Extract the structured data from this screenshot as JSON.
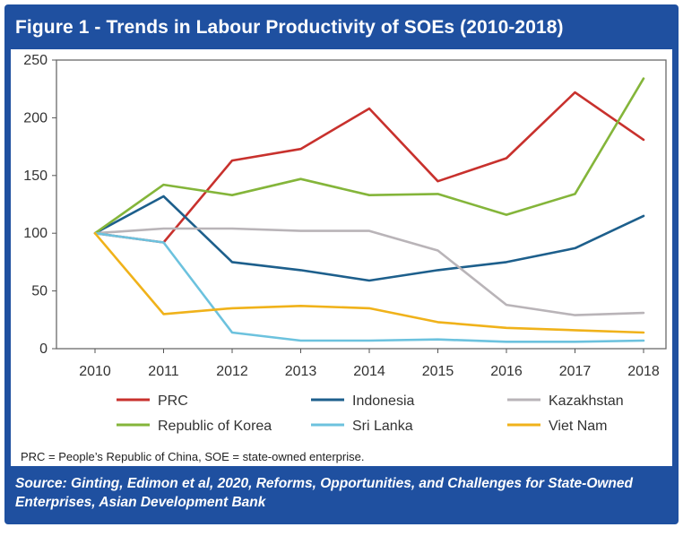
{
  "figure": {
    "title": "Figure 1 - Trends in Labour Productivity of SOEs (2010-2018)",
    "note": "PRC = People’s Republic of China, SOE = state-owned enterprise.",
    "source": "Source: Ginting, Edimon et al, 2020, Reforms, Opportunities, and Challenges for State-Owned Enterprises, Asian Development Bank"
  },
  "colors": {
    "frame": "#1f50a0",
    "PRC": "#c8312d",
    "Indonesia": "#1d5f8c",
    "Kazakhstan": "#b9b4b8",
    "Republic of Korea": "#84b53a",
    "Sri Lanka": "#6cc2de",
    "Viet Nam": "#f0b21a"
  },
  "chart_data": {
    "type": "line",
    "x": [
      "2010",
      "2011",
      "2012",
      "2013",
      "2014",
      "2015",
      "2016",
      "2017",
      "2018"
    ],
    "ylim": [
      0,
      250
    ],
    "yticks": [
      0,
      50,
      100,
      150,
      200,
      250
    ],
    "grid": false,
    "legend_position": "bottom",
    "series": [
      {
        "name": "PRC",
        "values": [
          100,
          92,
          163,
          173,
          208,
          145,
          165,
          222,
          181
        ]
      },
      {
        "name": "Indonesia",
        "values": [
          100,
          132,
          75,
          68,
          59,
          68,
          75,
          87,
          115
        ]
      },
      {
        "name": "Kazakhstan",
        "values": [
          100,
          104,
          104,
          102,
          102,
          85,
          38,
          29,
          31
        ]
      },
      {
        "name": "Republic of Korea",
        "values": [
          100,
          142,
          133,
          147,
          133,
          134,
          116,
          134,
          234
        ]
      },
      {
        "name": "Sri Lanka",
        "values": [
          100,
          92,
          14,
          7,
          7,
          8,
          6,
          6,
          7
        ]
      },
      {
        "name": "Viet Nam",
        "values": [
          100,
          30,
          35,
          37,
          35,
          23,
          18,
          16,
          14
        ]
      }
    ]
  }
}
